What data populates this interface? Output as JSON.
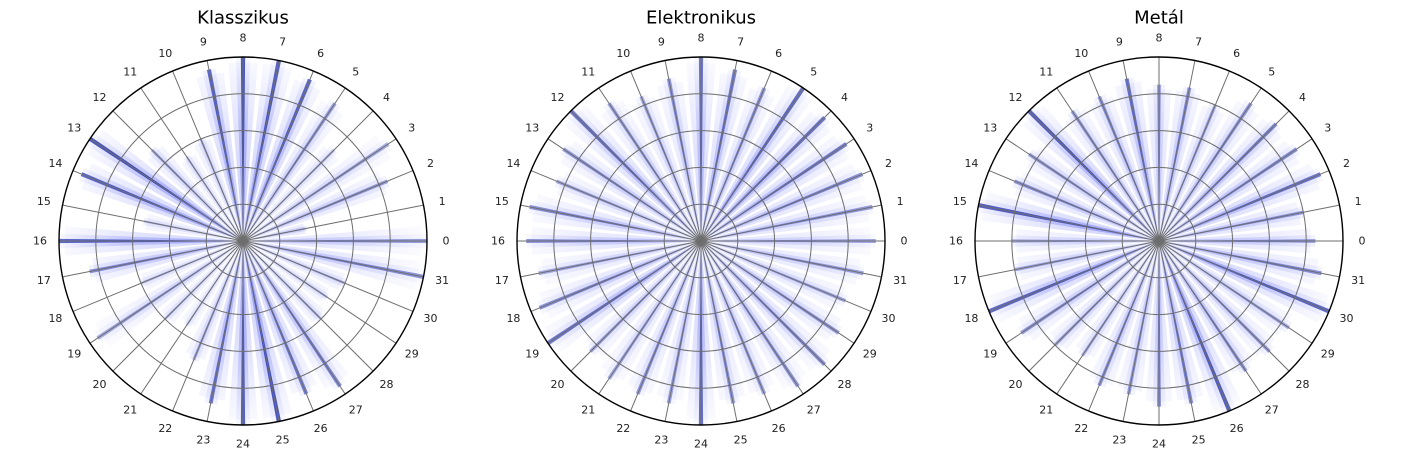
{
  "chart_data": [
    {
      "type": "polar",
      "title": "Klasszikus",
      "theta_ticks": [
        "0",
        "1",
        "2",
        "3",
        "4",
        "5",
        "6",
        "7",
        "8",
        "9",
        "10",
        "11",
        "12",
        "13",
        "14",
        "15",
        "16",
        "17",
        "18",
        "19",
        "20",
        "21",
        "22",
        "23",
        "24",
        "25",
        "26",
        "27",
        "28",
        "29",
        "30",
        "31"
      ],
      "radial_rings": 5,
      "grid": true,
      "fill_color": "#4a55f0",
      "spoke_color": "#0a1aa8",
      "intensity": [
        0.55,
        0.45,
        0.5,
        0.45,
        0.3,
        0.5,
        0.85,
        0.9,
        0.95,
        0.85,
        0.35,
        0.3,
        0.4,
        0.95,
        0.85,
        0.3,
        0.85,
        0.6,
        0.3,
        0.45,
        0.3,
        0.25,
        0.4,
        0.75,
        0.9,
        0.95,
        0.7,
        0.65,
        0.35,
        0.3,
        0.35,
        0.6
      ],
      "reach": [
        1.0,
        0.35,
        0.85,
        0.95,
        0.7,
        0.9,
        0.95,
        1.0,
        1.0,
        0.95,
        0.6,
        0.55,
        0.7,
        1.0,
        0.95,
        0.55,
        1.0,
        0.85,
        0.6,
        0.95,
        0.6,
        0.55,
        0.7,
        0.9,
        1.0,
        1.0,
        0.9,
        0.95,
        0.6,
        0.55,
        0.6,
        1.0
      ]
    },
    {
      "type": "polar",
      "title": "Elektronikus",
      "theta_ticks": [
        "0",
        "1",
        "2",
        "3",
        "4",
        "5",
        "6",
        "7",
        "8",
        "9",
        "10",
        "11",
        "12",
        "13",
        "14",
        "15",
        "16",
        "17",
        "18",
        "19",
        "20",
        "21",
        "22",
        "23",
        "24",
        "25",
        "26",
        "27",
        "28",
        "29",
        "30",
        "31"
      ],
      "radial_rings": 5,
      "grid": true,
      "fill_color": "#4a55f0",
      "spoke_color": "#0a1aa8",
      "intensity": [
        0.5,
        0.55,
        0.6,
        0.7,
        0.75,
        0.8,
        0.55,
        0.7,
        0.75,
        0.55,
        0.45,
        0.5,
        0.75,
        0.55,
        0.45,
        0.6,
        0.6,
        0.45,
        0.6,
        0.75,
        0.45,
        0.45,
        0.55,
        0.5,
        0.8,
        0.55,
        0.5,
        0.55,
        0.6,
        0.55,
        0.45,
        0.5
      ],
      "reach": [
        0.95,
        0.95,
        0.95,
        0.95,
        0.95,
        1.0,
        0.9,
        0.95,
        1.0,
        0.9,
        0.85,
        0.9,
        1.0,
        0.9,
        0.85,
        0.95,
        0.95,
        0.9,
        0.95,
        1.0,
        0.85,
        0.9,
        0.9,
        0.9,
        1.0,
        0.9,
        0.9,
        0.95,
        0.95,
        0.9,
        0.85,
        0.9
      ]
    },
    {
      "type": "polar",
      "title": "Metál",
      "theta_ticks": [
        "0",
        "1",
        "2",
        "3",
        "4",
        "5",
        "6",
        "7",
        "8",
        "9",
        "10",
        "11",
        "12",
        "13",
        "14",
        "15",
        "16",
        "17",
        "18",
        "19",
        "20",
        "21",
        "22",
        "23",
        "24",
        "25",
        "26",
        "27",
        "28",
        "29",
        "30",
        "31"
      ],
      "radial_rings": 5,
      "grid": true,
      "fill_color": "#4a55f0",
      "spoke_color": "#0a1aa8",
      "intensity": [
        0.55,
        0.55,
        0.75,
        0.6,
        0.65,
        0.55,
        0.45,
        0.6,
        0.55,
        0.75,
        0.55,
        0.5,
        0.9,
        0.5,
        0.55,
        0.9,
        0.45,
        0.45,
        0.85,
        0.55,
        0.45,
        0.4,
        0.55,
        0.5,
        0.6,
        0.65,
        0.9,
        0.55,
        0.5,
        0.45,
        0.85,
        0.6
      ],
      "reach": [
        0.85,
        0.8,
        0.95,
        0.9,
        0.9,
        0.9,
        0.8,
        0.85,
        0.85,
        0.9,
        0.85,
        0.85,
        1.0,
        0.85,
        0.85,
        1.0,
        0.8,
        0.8,
        1.0,
        0.9,
        0.8,
        0.75,
        0.85,
        0.85,
        0.9,
        0.9,
        1.0,
        0.85,
        0.85,
        0.85,
        1.0,
        0.9
      ]
    }
  ]
}
